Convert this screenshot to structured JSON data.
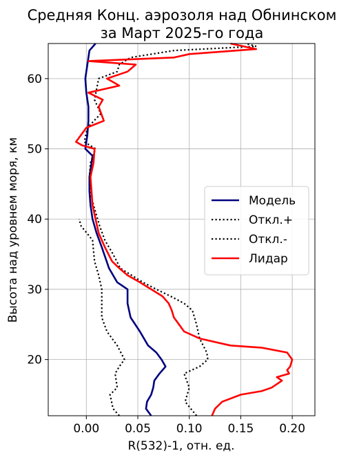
{
  "chart_data": {
    "type": "line",
    "title_line1": "Средняя Конц. аэрозоля над Обнинском",
    "title_line2": "за Март 2025-го года",
    "xlabel": "R(532)-1, отн. ед.",
    "ylabel": "Высота над уровнем моря, км",
    "xlim": [
      -0.037,
      0.222
    ],
    "ylim": [
      12,
      65
    ],
    "xticks": [
      0.0,
      0.05,
      0.1,
      0.15,
      0.2
    ],
    "xtick_labels": [
      "0.00",
      "0.05",
      "0.10",
      "0.15",
      "0.20"
    ],
    "yticks": [
      20,
      30,
      40,
      50,
      60
    ],
    "ytick_labels": [
      "20",
      "30",
      "40",
      "50",
      "60"
    ],
    "grid": true,
    "legend_position": "right",
    "series": [
      {
        "name": "Модель",
        "color": "#00007f",
        "style": "solid",
        "points": [
          [
            0.063,
            12
          ],
          [
            0.058,
            13
          ],
          [
            0.059,
            14
          ],
          [
            0.063,
            15
          ],
          [
            0.065,
            16
          ],
          [
            0.066,
            17
          ],
          [
            0.071,
            18
          ],
          [
            0.077,
            19
          ],
          [
            0.073,
            20
          ],
          [
            0.068,
            21
          ],
          [
            0.06,
            22
          ],
          [
            0.052,
            24
          ],
          [
            0.043,
            26
          ],
          [
            0.04,
            28
          ],
          [
            0.04,
            30
          ],
          [
            0.03,
            31
          ],
          [
            0.022,
            33
          ],
          [
            0.015,
            36
          ],
          [
            0.01,
            38
          ],
          [
            0.006,
            40
          ],
          [
            0.004,
            42
          ],
          [
            0.003,
            44
          ],
          [
            0.003,
            46
          ],
          [
            0.005,
            48
          ],
          [
            0.006,
            49
          ],
          [
            -0.001,
            50
          ],
          [
            0.001,
            52
          ],
          [
            0.002,
            54
          ],
          [
            0.002,
            56
          ],
          [
            0.0,
            58
          ],
          [
            -0.001,
            60
          ],
          [
            0.001,
            62
          ],
          [
            0.002,
            63
          ],
          [
            0.003,
            64
          ],
          [
            0.009,
            65
          ]
        ]
      },
      {
        "name": "Откл.+",
        "color": "#000000",
        "style": "dotted",
        "points": [
          [
            0.107,
            12
          ],
          [
            0.096,
            14
          ],
          [
            0.1,
            16
          ],
          [
            0.095,
            18
          ],
          [
            0.11,
            19
          ],
          [
            0.118,
            20
          ],
          [
            0.117,
            21
          ],
          [
            0.11,
            23
          ],
          [
            0.107,
            25
          ],
          [
            0.103,
            27
          ],
          [
            0.095,
            28
          ],
          [
            0.082,
            29
          ],
          [
            0.068,
            30
          ],
          [
            0.055,
            31
          ],
          [
            0.044,
            32
          ],
          [
            0.033,
            33
          ],
          [
            0.026,
            35
          ],
          [
            0.018,
            37
          ],
          [
            0.013,
            39
          ],
          [
            0.009,
            41
          ],
          [
            0.005,
            43
          ],
          [
            0.003,
            46
          ],
          [
            0.004,
            48
          ],
          [
            0.009,
            50
          ],
          [
            -0.002,
            51
          ],
          [
            0.001,
            53
          ],
          [
            0.014,
            55
          ],
          [
            0.008,
            57
          ],
          [
            0.012,
            60
          ],
          [
            0.03,
            61
          ],
          [
            0.032,
            62
          ],
          [
            0.043,
            63
          ],
          [
            0.085,
            64
          ],
          [
            0.165,
            64.6
          ],
          [
            0.155,
            65
          ]
        ]
      },
      {
        "name": "Откл.-",
        "color": "#000000",
        "style": "dotted",
        "points": [
          [
            0.032,
            12
          ],
          [
            0.026,
            13
          ],
          [
            0.023,
            15
          ],
          [
            0.03,
            16
          ],
          [
            0.028,
            18
          ],
          [
            0.032,
            19
          ],
          [
            0.037,
            20
          ],
          [
            0.03,
            22
          ],
          [
            0.02,
            24
          ],
          [
            0.015,
            26
          ],
          [
            0.015,
            28
          ],
          [
            0.015,
            30
          ],
          [
            0.012,
            32
          ],
          [
            0.008,
            34
          ],
          [
            0.006,
            37
          ],
          [
            -0.005,
            39
          ],
          [
            -0.007,
            40
          ]
        ]
      },
      {
        "name": "Лидар",
        "color": "#ff0000",
        "style": "solid",
        "points": [
          [
            0.122,
            12
          ],
          [
            0.125,
            13
          ],
          [
            0.132,
            14
          ],
          [
            0.15,
            15
          ],
          [
            0.17,
            15.5
          ],
          [
            0.18,
            16
          ],
          [
            0.19,
            17
          ],
          [
            0.185,
            17.5
          ],
          [
            0.197,
            18
          ],
          [
            0.195,
            18.5
          ],
          [
            0.198,
            19
          ],
          [
            0.2,
            20
          ],
          [
            0.195,
            21
          ],
          [
            0.17,
            21.7
          ],
          [
            0.14,
            22
          ],
          [
            0.11,
            23
          ],
          [
            0.095,
            24
          ],
          [
            0.09,
            25
          ],
          [
            0.085,
            26
          ],
          [
            0.083,
            27
          ],
          [
            0.08,
            28
          ],
          [
            0.074,
            29
          ],
          [
            0.063,
            30
          ],
          [
            0.052,
            31
          ],
          [
            0.04,
            32
          ],
          [
            0.032,
            33
          ],
          [
            0.025,
            34
          ],
          [
            0.018,
            36
          ],
          [
            0.012,
            38
          ],
          [
            0.009,
            40
          ],
          [
            0.006,
            42
          ],
          [
            0.005,
            44
          ],
          [
            0.004,
            46
          ],
          [
            0.007,
            48
          ],
          [
            0.008,
            50
          ],
          [
            -0.004,
            50.5
          ],
          [
            -0.01,
            51
          ],
          [
            0.0,
            53
          ],
          [
            0.017,
            54
          ],
          [
            0.012,
            56
          ],
          [
            0.016,
            57
          ],
          [
            0.002,
            58
          ],
          [
            0.032,
            59
          ],
          [
            0.02,
            60
          ],
          [
            0.04,
            61
          ],
          [
            0.048,
            62
          ],
          [
            0.002,
            62.5
          ],
          [
            0.085,
            63
          ],
          [
            0.1,
            63.5
          ],
          [
            0.165,
            64.2
          ],
          [
            0.14,
            65
          ]
        ]
      }
    ]
  }
}
